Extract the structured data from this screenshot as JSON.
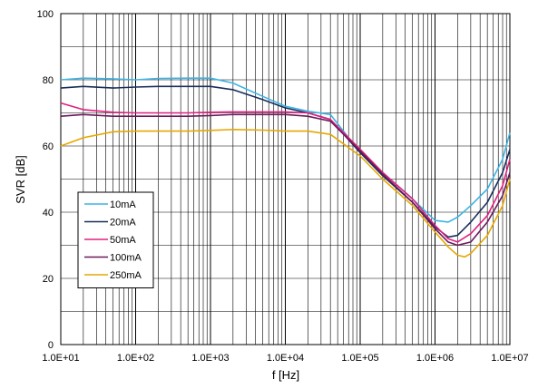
{
  "chart_data": {
    "type": "line",
    "title": "",
    "xlabel": "f [Hz]",
    "ylabel": "SVR [dB]",
    "xscale": "log",
    "xlim": [
      10,
      10000000
    ],
    "ylim": [
      0,
      100
    ],
    "grid": true,
    "legend_position": "bottom-left",
    "x_tick_labels": [
      "1.0E+01",
      "1.0E+02",
      "1.0E+03",
      "1.0E+04",
      "1.0E+05",
      "1.0E+06",
      "1.0E+07"
    ],
    "y_tick_labels": [
      "0",
      "20",
      "40",
      "60",
      "80",
      "100"
    ],
    "series": [
      {
        "name": "10mA",
        "color": "#3cb4e6",
        "points": [
          [
            10,
            80
          ],
          [
            20,
            80.5
          ],
          [
            50,
            80.3
          ],
          [
            100,
            80
          ],
          [
            200,
            80.4
          ],
          [
            500,
            80.5
          ],
          [
            1000,
            80.5
          ],
          [
            2000,
            79
          ],
          [
            5000,
            75
          ],
          [
            10000,
            72
          ],
          [
            20000,
            70.5
          ],
          [
            40000,
            69.5
          ],
          [
            100000,
            58
          ],
          [
            200000,
            52
          ],
          [
            500000,
            44
          ],
          [
            1000000,
            37.5
          ],
          [
            1500000,
            37
          ],
          [
            2000000,
            38.5
          ],
          [
            3000000,
            42
          ],
          [
            5000000,
            47
          ],
          [
            8000000,
            56
          ],
          [
            10000000,
            64
          ]
        ]
      },
      {
        "name": "20mA",
        "color": "#1a2e5c",
        "points": [
          [
            10,
            77.5
          ],
          [
            20,
            78
          ],
          [
            50,
            77.5
          ],
          [
            100,
            77.8
          ],
          [
            200,
            78
          ],
          [
            500,
            78
          ],
          [
            1000,
            78
          ],
          [
            2000,
            77
          ],
          [
            5000,
            74
          ],
          [
            10000,
            71.5
          ],
          [
            20000,
            70
          ],
          [
            40000,
            68
          ],
          [
            100000,
            58
          ],
          [
            200000,
            51
          ],
          [
            500000,
            43
          ],
          [
            1000000,
            35.5
          ],
          [
            1500000,
            32.5
          ],
          [
            2000000,
            33
          ],
          [
            3000000,
            37
          ],
          [
            5000000,
            43
          ],
          [
            8000000,
            52
          ],
          [
            10000000,
            59
          ]
        ]
      },
      {
        "name": "50mA",
        "color": "#e0207f",
        "points": [
          [
            10,
            73
          ],
          [
            20,
            71
          ],
          [
            50,
            70.2
          ],
          [
            100,
            70
          ],
          [
            200,
            70
          ],
          [
            500,
            70
          ],
          [
            1000,
            70.2
          ],
          [
            2000,
            70.3
          ],
          [
            5000,
            70.3
          ],
          [
            10000,
            70.3
          ],
          [
            20000,
            70
          ],
          [
            40000,
            68
          ],
          [
            100000,
            59
          ],
          [
            200000,
            52
          ],
          [
            500000,
            44
          ],
          [
            1000000,
            36
          ],
          [
            1500000,
            32
          ],
          [
            2000000,
            31
          ],
          [
            3000000,
            33.5
          ],
          [
            5000000,
            39
          ],
          [
            8000000,
            48
          ],
          [
            10000000,
            56
          ]
        ]
      },
      {
        "name": "100mA",
        "color": "#6b1a5a",
        "points": [
          [
            10,
            69
          ],
          [
            20,
            69.5
          ],
          [
            50,
            69
          ],
          [
            100,
            69
          ],
          [
            200,
            69
          ],
          [
            500,
            69
          ],
          [
            1000,
            69.2
          ],
          [
            2000,
            69.5
          ],
          [
            5000,
            69.5
          ],
          [
            10000,
            69.5
          ],
          [
            20000,
            69
          ],
          [
            40000,
            67.5
          ],
          [
            100000,
            58.5
          ],
          [
            200000,
            51.5
          ],
          [
            500000,
            43
          ],
          [
            1000000,
            35
          ],
          [
            1500000,
            31
          ],
          [
            2000000,
            30
          ],
          [
            3000000,
            31
          ],
          [
            5000000,
            37
          ],
          [
            8000000,
            45
          ],
          [
            10000000,
            52
          ]
        ]
      },
      {
        "name": "250mA",
        "color": "#e6a800",
        "points": [
          [
            10,
            60
          ],
          [
            20,
            62.5
          ],
          [
            50,
            64.3
          ],
          [
            100,
            64.5
          ],
          [
            200,
            64.5
          ],
          [
            500,
            64.5
          ],
          [
            1000,
            64.7
          ],
          [
            2000,
            65
          ],
          [
            5000,
            64.8
          ],
          [
            10000,
            64.5
          ],
          [
            20000,
            64.5
          ],
          [
            40000,
            63.5
          ],
          [
            100000,
            57
          ],
          [
            200000,
            50
          ],
          [
            500000,
            42
          ],
          [
            1000000,
            34
          ],
          [
            1500000,
            29.5
          ],
          [
            2000000,
            27
          ],
          [
            2500000,
            26.5
          ],
          [
            3000000,
            27.5
          ],
          [
            5000000,
            33
          ],
          [
            8000000,
            42
          ],
          [
            10000000,
            50
          ]
        ]
      }
    ]
  }
}
